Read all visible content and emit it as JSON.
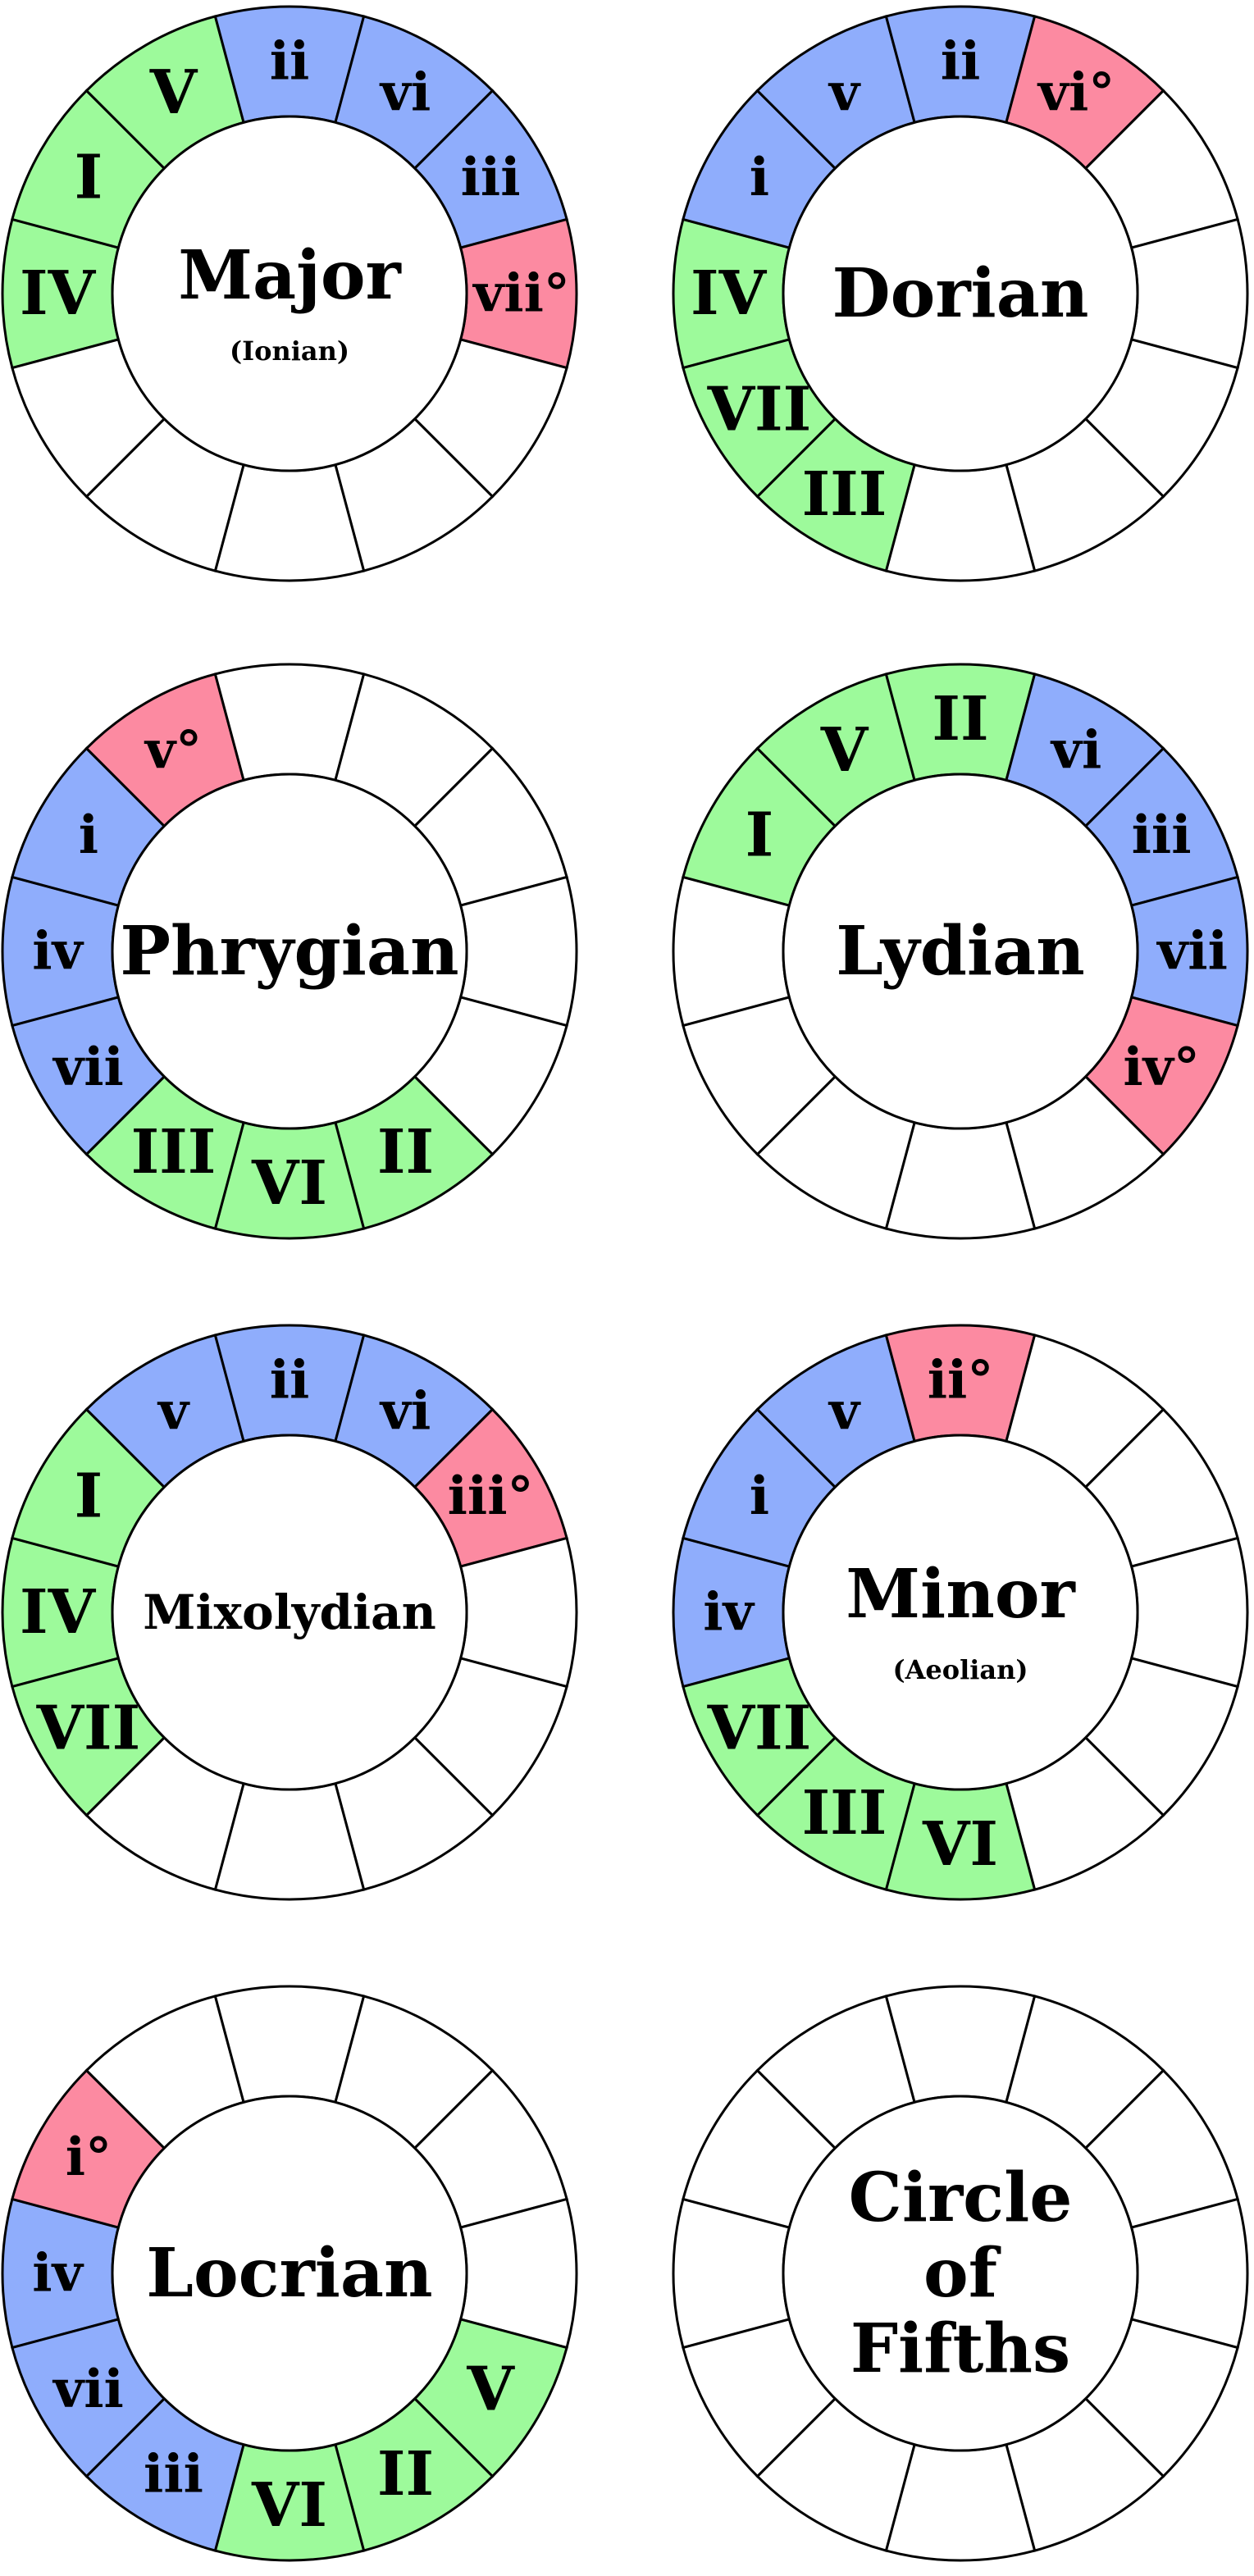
{
  "colors": {
    "major": "#9dfa9b",
    "minor": "#8fadfc",
    "diminished": "#fc8aa1",
    "empty": "#ffffff",
    "stroke": "#000000"
  },
  "wheels": [
    {
      "id": "major",
      "title": [
        "Major"
      ],
      "subtitle": "(Ionian)",
      "segments": [
        "IV",
        "I",
        "V",
        "ii",
        "vi",
        "iii",
        "vii°",
        "",
        "",
        "",
        "",
        ""
      ],
      "types": [
        "major",
        "major",
        "major",
        "minor",
        "minor",
        "minor",
        "diminished",
        "empty",
        "empty",
        "empty",
        "empty",
        "empty"
      ]
    },
    {
      "id": "dorian",
      "title": [
        "Dorian"
      ],
      "subtitle": "",
      "segments": [
        "IV",
        "i",
        "v",
        "ii",
        "vi°",
        "",
        "",
        "",
        "",
        "",
        "III",
        "VII"
      ],
      "types": [
        "major",
        "minor",
        "minor",
        "minor",
        "diminished",
        "empty",
        "empty",
        "empty",
        "empty",
        "empty",
        "major",
        "major"
      ]
    },
    {
      "id": "phrygian",
      "title": [
        "Phrygian"
      ],
      "subtitle": "",
      "segments": [
        "iv",
        "i",
        "v°",
        "",
        "",
        "",
        "",
        "",
        "II",
        "VI",
        "III",
        "vii"
      ],
      "types": [
        "minor",
        "minor",
        "diminished",
        "empty",
        "empty",
        "empty",
        "empty",
        "empty",
        "major",
        "major",
        "major",
        "minor"
      ]
    },
    {
      "id": "lydian",
      "title": [
        "Lydian"
      ],
      "subtitle": "",
      "segments": [
        "",
        "I",
        "V",
        "II",
        "vi",
        "iii",
        "vii",
        "iv°",
        "",
        "",
        "",
        ""
      ],
      "types": [
        "empty",
        "major",
        "major",
        "major",
        "minor",
        "minor",
        "minor",
        "diminished",
        "empty",
        "empty",
        "empty",
        "empty"
      ]
    },
    {
      "id": "mixolydian",
      "title": [
        "Mixolydian"
      ],
      "subtitle": "",
      "segments": [
        "IV",
        "I",
        "v",
        "ii",
        "vi",
        "iii°",
        "",
        "",
        "",
        "",
        "",
        "VII"
      ],
      "types": [
        "major",
        "major",
        "minor",
        "minor",
        "minor",
        "diminished",
        "empty",
        "empty",
        "empty",
        "empty",
        "empty",
        "major"
      ]
    },
    {
      "id": "minor",
      "title": [
        "Minor"
      ],
      "subtitle": "(Aeolian)",
      "segments": [
        "iv",
        "i",
        "v",
        "ii°",
        "",
        "",
        "",
        "",
        "",
        "VI",
        "III",
        "VII"
      ],
      "types": [
        "minor",
        "minor",
        "minor",
        "diminished",
        "empty",
        "empty",
        "empty",
        "empty",
        "empty",
        "major",
        "major",
        "major"
      ]
    },
    {
      "id": "locrian",
      "title": [
        "Locrian"
      ],
      "subtitle": "",
      "segments": [
        "iv",
        "i°",
        "",
        "",
        "",
        "",
        "",
        "V",
        "II",
        "VI",
        "iii",
        "vii"
      ],
      "types": [
        "minor",
        "diminished",
        "empty",
        "empty",
        "empty",
        "empty",
        "empty",
        "major",
        "major",
        "major",
        "minor",
        "minor"
      ]
    },
    {
      "id": "circle-of-fifths",
      "title": [
        "Circle",
        "of",
        "Fifths"
      ],
      "subtitle": "",
      "segments": [
        "",
        "",
        "",
        "",
        "",
        "",
        "",
        "",
        "",
        "",
        "",
        ""
      ],
      "types": [
        "empty",
        "empty",
        "empty",
        "empty",
        "empty",
        "empty",
        "empty",
        "empty",
        "empty",
        "empty",
        "empty",
        "empty"
      ]
    }
  ]
}
